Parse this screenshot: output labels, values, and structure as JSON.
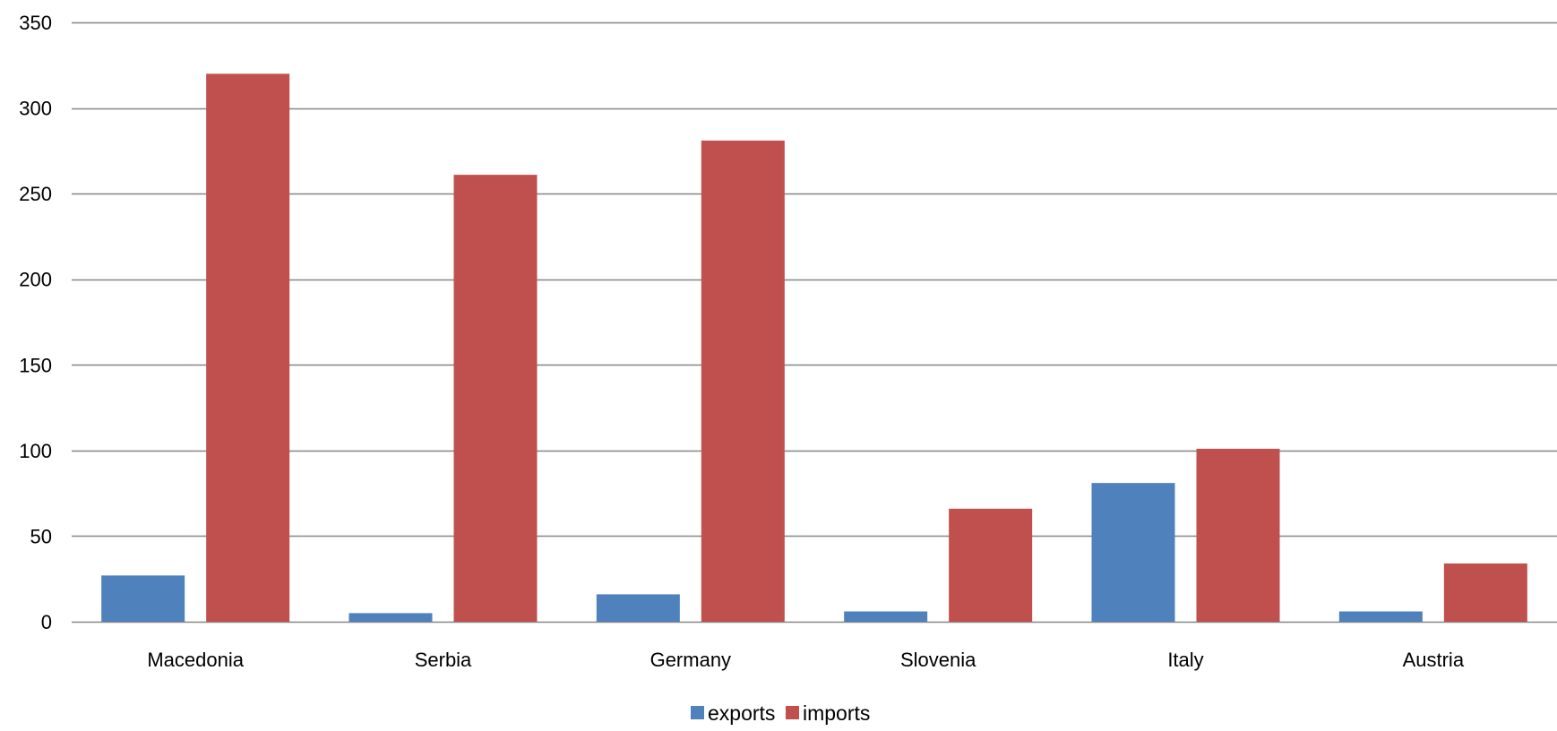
{
  "chart_data": {
    "type": "bar",
    "categories": [
      "Macedonia",
      "Serbia",
      "Germany",
      "Slovenia",
      "Italy",
      "Austria"
    ],
    "series": [
      {
        "name": "exports",
        "values": [
          27,
          5,
          16,
          6,
          81,
          6
        ],
        "color": "#4F81BD"
      },
      {
        "name": "imports",
        "values": [
          320,
          261,
          281,
          66,
          101,
          34
        ],
        "color": "#C0504D"
      }
    ],
    "title": "",
    "xlabel": "",
    "ylabel": "",
    "ylim": [
      0,
      350
    ],
    "yticks": [
      0,
      50,
      100,
      150,
      200,
      250,
      300,
      350
    ],
    "grid": true,
    "legend_position": "bottom",
    "gridline_color": "#868686",
    "axis_color": "#868686"
  }
}
